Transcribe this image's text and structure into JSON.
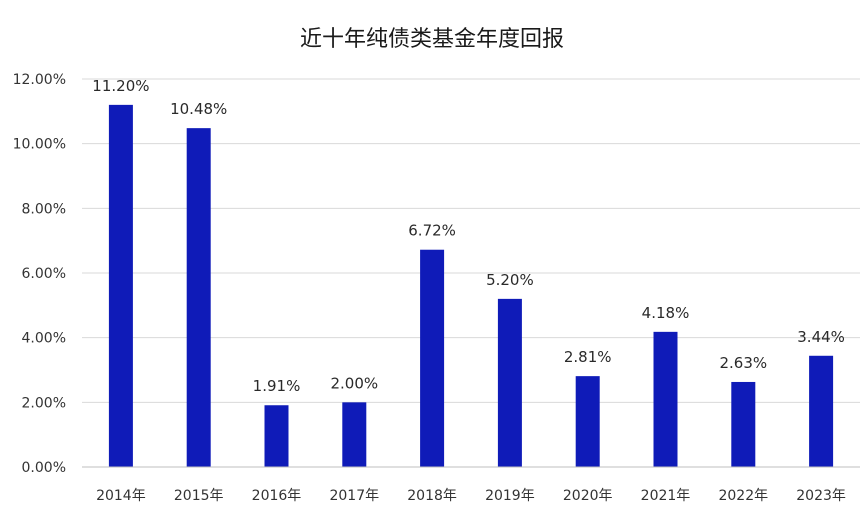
{
  "chart_data": {
    "type": "bar",
    "title": "近十年纯债类基金年度回报",
    "xlabel": "",
    "ylabel": "",
    "categories": [
      "2014年",
      "2015年",
      "2016年",
      "2017年",
      "2018年",
      "2019年",
      "2020年",
      "2021年",
      "2022年",
      "2023年"
    ],
    "values": [
      11.2,
      10.48,
      1.91,
      2.0,
      6.72,
      5.2,
      2.81,
      4.18,
      2.63,
      3.44
    ],
    "value_labels": [
      "11.20%",
      "10.48%",
      "1.91%",
      "2.00%",
      "6.72%",
      "5.20%",
      "2.81%",
      "4.18%",
      "2.63%",
      "3.44%"
    ],
    "ylim": [
      0,
      12
    ],
    "yticks": [
      0,
      2,
      4,
      6,
      8,
      10,
      12
    ],
    "ytick_labels": [
      "0.00%",
      "2.00%",
      "4.00%",
      "6.00%",
      "8.00%",
      "10.00%",
      "12.00%"
    ],
    "grid": true,
    "legend": "none",
    "bar_color": "#0f1bb8"
  }
}
